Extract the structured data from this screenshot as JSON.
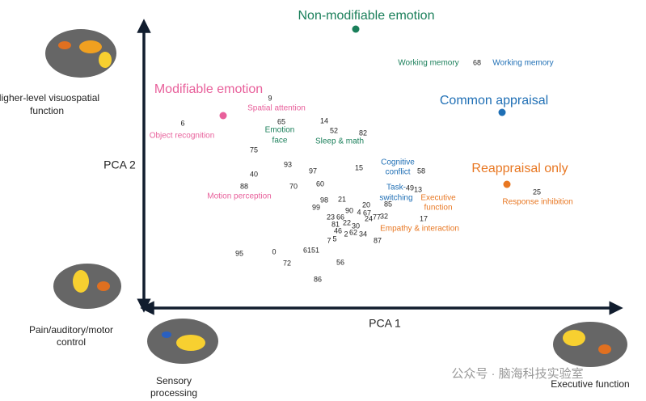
{
  "headings": [
    "Non-modifiable emotion",
    "Modifiable emotion",
    "Common appraisal",
    "Reappraisal only"
  ],
  "labels": [
    "Working memory",
    "Working memory",
    "Spatial attention",
    "Object recognition",
    "Emotion",
    "face",
    "Sleep & math",
    "Cognitive",
    "conflict",
    "Motion perception",
    "Task-",
    "switching",
    "Executive",
    "function",
    "Response inhibition",
    "Empathy & interaction"
  ],
  "numbers": [
    "68",
    "9",
    "6",
    "65",
    "14",
    "52",
    "82",
    "75",
    "93",
    "97",
    "15",
    "58",
    "40",
    "88",
    "70",
    "60",
    "49",
    "13",
    "25",
    "98",
    "21",
    "99",
    "20",
    "85",
    "90",
    "4",
    "67",
    "23",
    "66",
    "24",
    "77",
    "32",
    "17",
    "81",
    "22",
    "30",
    "46",
    "2",
    "62",
    "34",
    "7",
    "5",
    "87",
    "95",
    "0",
    "61",
    "51",
    "72",
    "56",
    "86"
  ],
  "axes": {
    "y": "PCA 2",
    "x": "PCA 1"
  },
  "corners": [
    "Higher-level visuospatial",
    "function",
    "Pain/auditory/motor",
    "control",
    "Sensory",
    "processing",
    "Executive function"
  ],
  "watermark": "公众号 · 脑海科技实验室"
}
